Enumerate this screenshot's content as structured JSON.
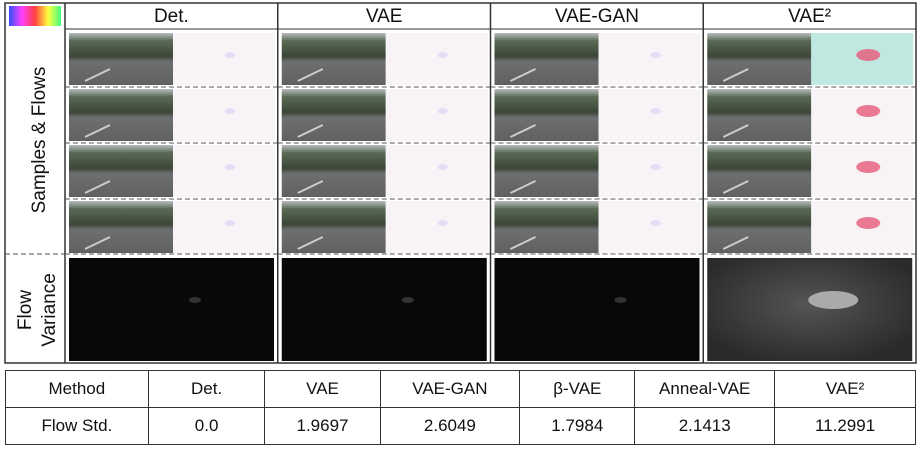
{
  "figure": {
    "columns": [
      "Det.",
      "VAE",
      "VAE-GAN",
      "VAE²"
    ],
    "samples_label": "Samples & Flows",
    "variance_label": [
      "Flow",
      "Variance"
    ]
  },
  "table": {
    "rows": [
      [
        "Method",
        "Det.",
        "VAE",
        "VAE-GAN",
        "β-VAE",
        "Anneal-VAE",
        "VAE²"
      ],
      [
        "Flow Std.",
        "0.0",
        "1.9697",
        "2.6049",
        "1.7984",
        "2.1413",
        "11.2991"
      ]
    ]
  }
}
